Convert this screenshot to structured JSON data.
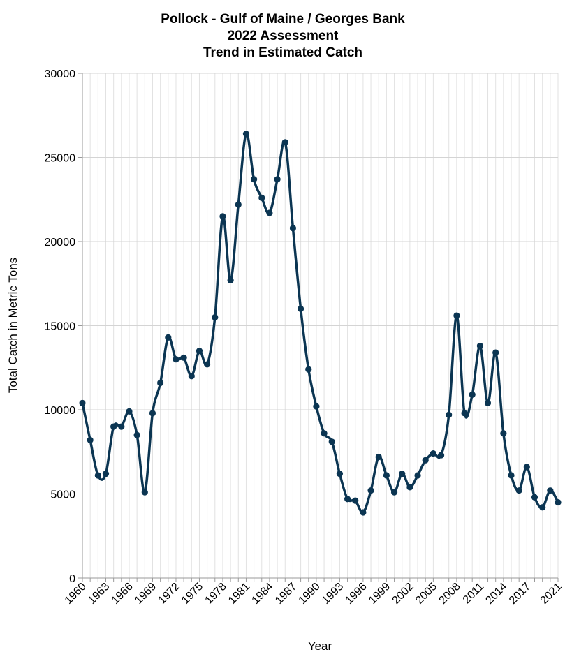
{
  "chart_data": {
    "type": "line",
    "title_lines": [
      "Pollock - Gulf of Maine / Georges Bank",
      "2022 Assessment",
      "Trend in Estimated Catch"
    ],
    "xlabel": "Year",
    "ylabel": "Total Catch in Metric Tons",
    "ylim": [
      0,
      30000
    ],
    "xlim": [
      1960,
      2021
    ],
    "y_ticks": [
      0,
      5000,
      10000,
      15000,
      20000,
      25000,
      30000
    ],
    "x_ticks": [
      1960,
      1963,
      1966,
      1969,
      1972,
      1975,
      1978,
      1981,
      1984,
      1987,
      1990,
      1993,
      1996,
      1999,
      2002,
      2005,
      2008,
      2011,
      2014,
      2017,
      2021
    ],
    "grid": true,
    "line_color": "#0b3552",
    "x": [
      1960,
      1961,
      1962,
      1963,
      1964,
      1965,
      1966,
      1967,
      1968,
      1969,
      1970,
      1971,
      1972,
      1973,
      1974,
      1975,
      1976,
      1977,
      1978,
      1979,
      1980,
      1981,
      1982,
      1983,
      1984,
      1985,
      1986,
      1987,
      1988,
      1989,
      1990,
      1991,
      1992,
      1993,
      1994,
      1995,
      1996,
      1997,
      1998,
      1999,
      2000,
      2001,
      2002,
      2003,
      2004,
      2005,
      2006,
      2007,
      2008,
      2009,
      2010,
      2011,
      2012,
      2013,
      2014,
      2015,
      2016,
      2017,
      2018,
      2019,
      2020,
      2021
    ],
    "values": [
      10400,
      8200,
      6100,
      6200,
      9000,
      9000,
      9900,
      8500,
      5100,
      9800,
      11600,
      14300,
      13000,
      13100,
      12000,
      13500,
      12700,
      15500,
      21500,
      17700,
      22200,
      26400,
      23700,
      22600,
      21700,
      23700,
      25900,
      20800,
      16000,
      12400,
      10200,
      8600,
      8100,
      6200,
      4700,
      4600,
      3900,
      5200,
      7200,
      6100,
      5100,
      6200,
      5400,
      6100,
      7000,
      7400,
      7300,
      9700,
      15600,
      9800,
      10900,
      13800,
      10400,
      13400,
      8600,
      6100,
      5200,
      6600,
      4800,
      4200,
      5200,
      4500
    ]
  }
}
